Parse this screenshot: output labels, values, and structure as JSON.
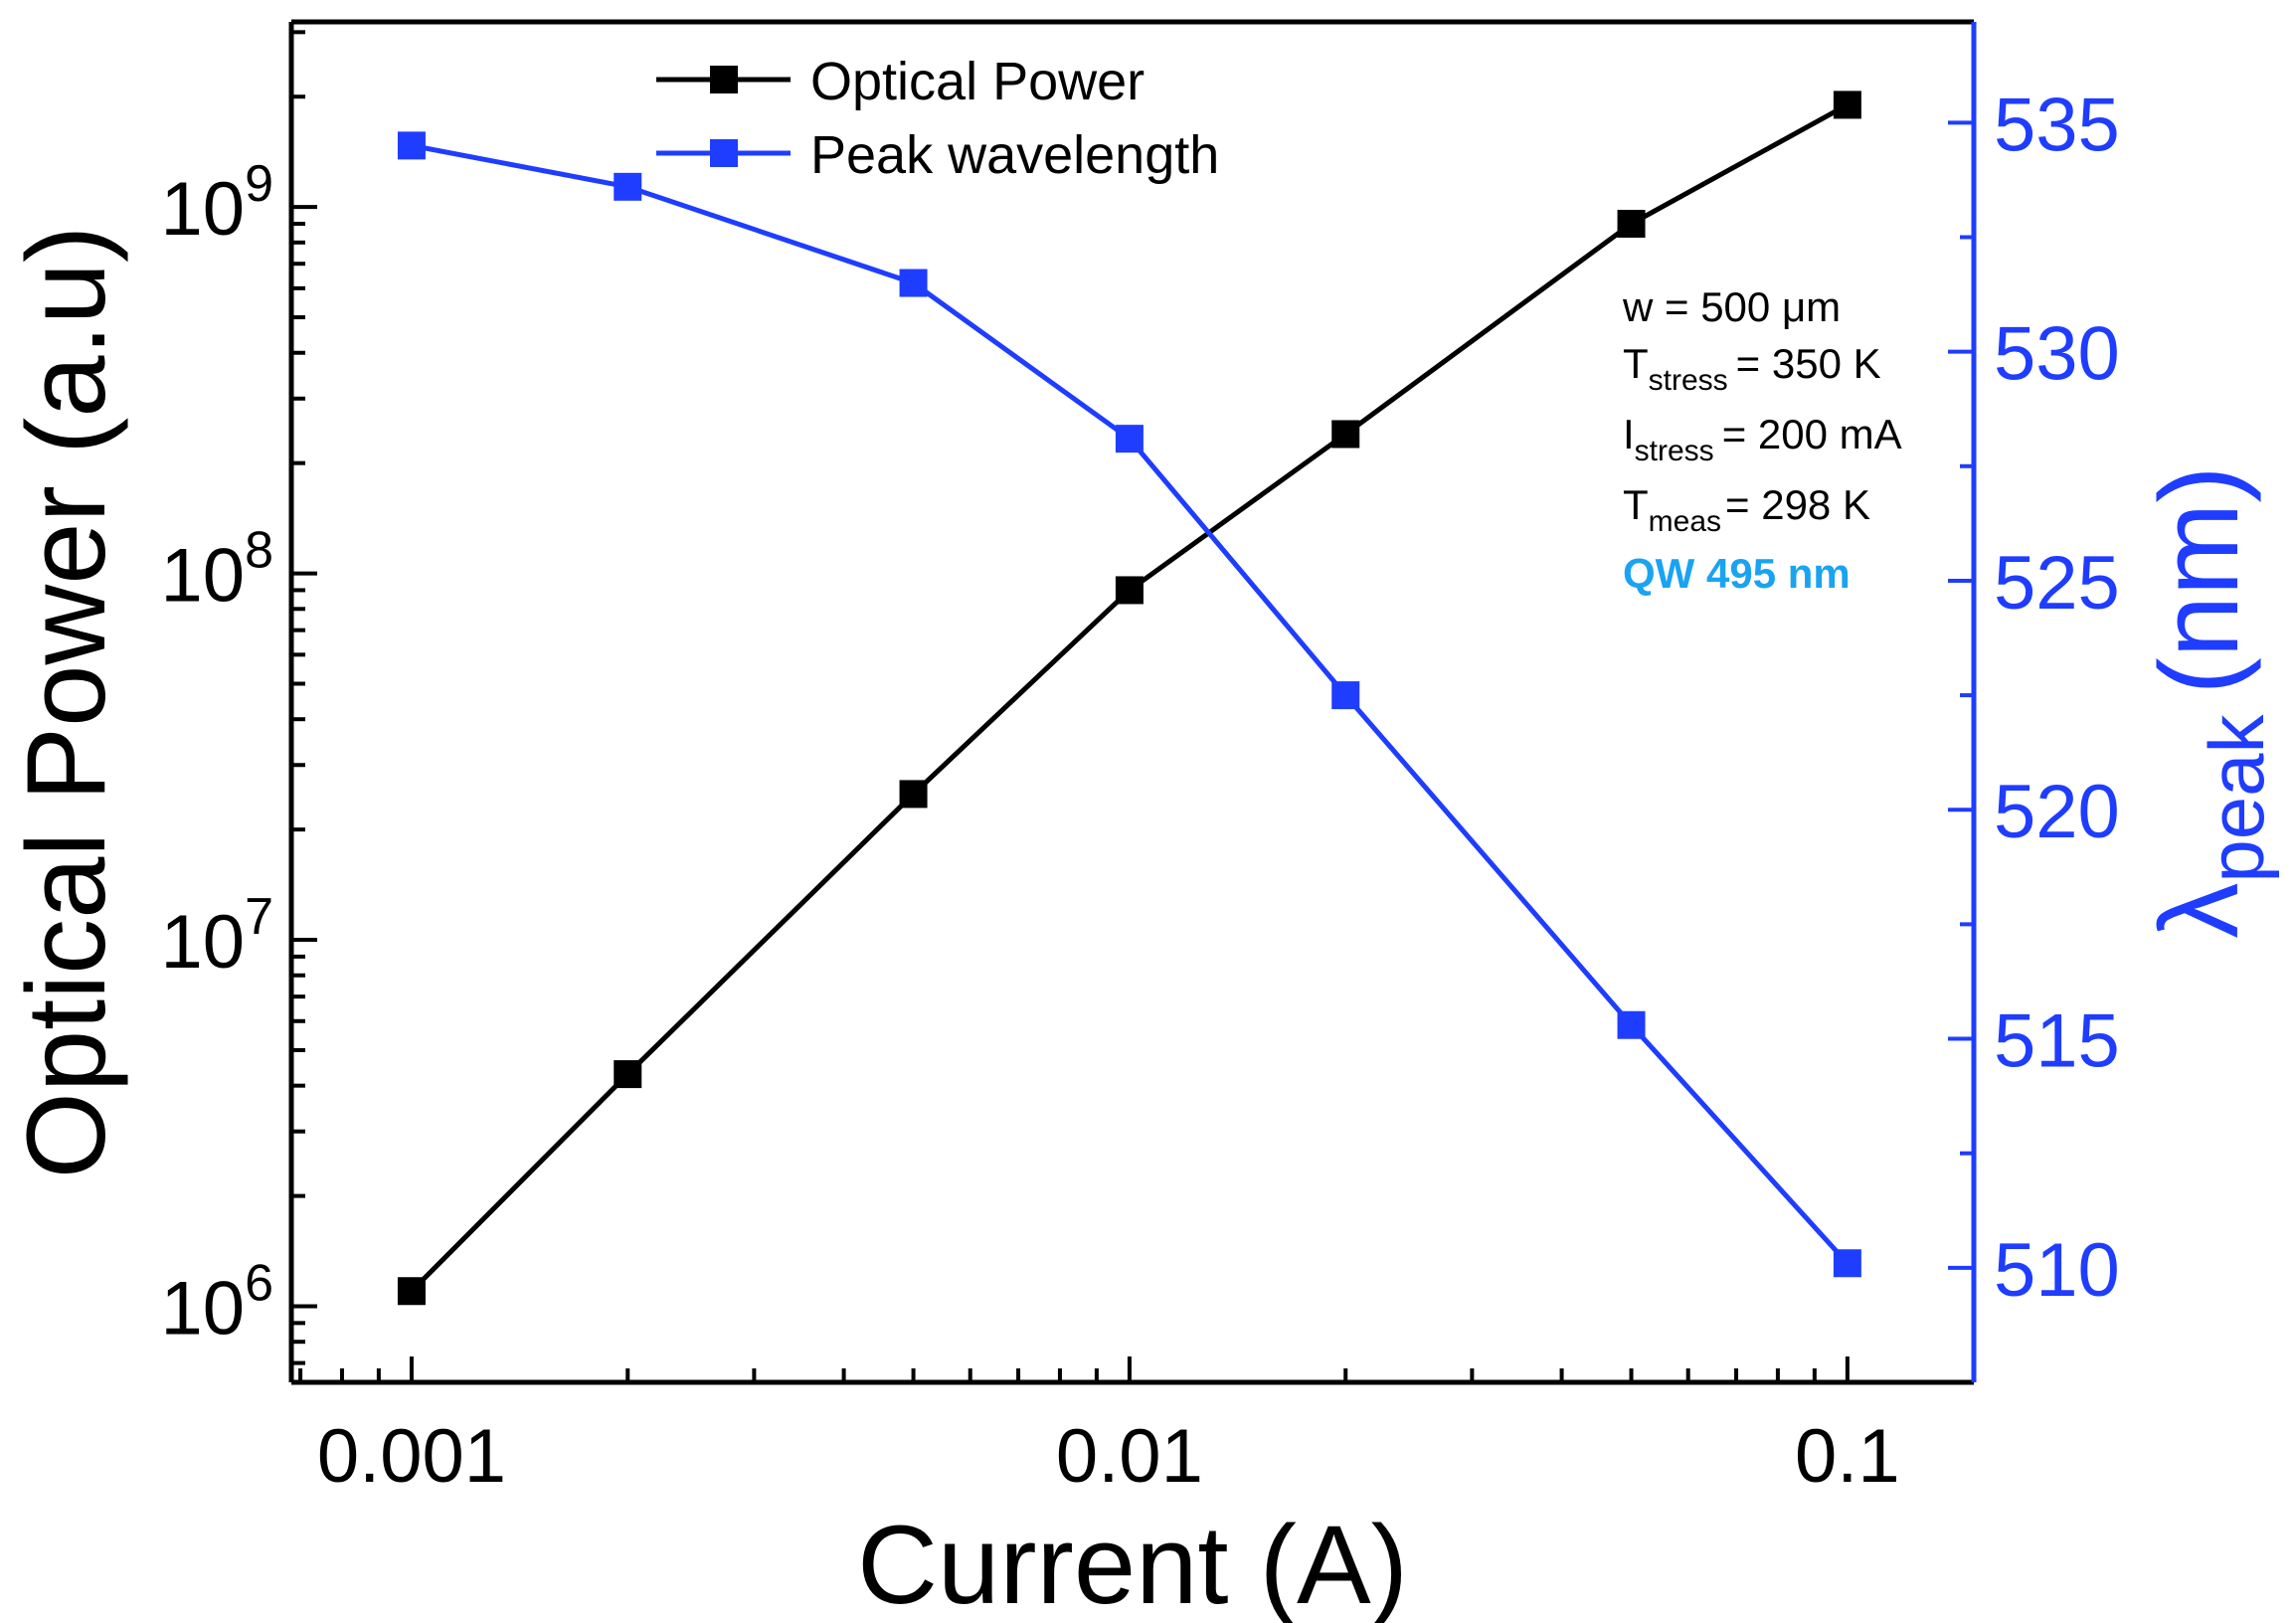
{
  "chart_data": {
    "type": "line",
    "xlabel": "Current (A)",
    "xscale": "log",
    "xlim": [
      0.00068,
      0.15
    ],
    "x": [
      0.001,
      0.002,
      0.005,
      0.01,
      0.02,
      0.05,
      0.1
    ],
    "x_ticks": [
      {
        "value": 0.001,
        "label": "0.001"
      },
      {
        "value": 0.01,
        "label": "0.01"
      },
      {
        "value": 0.1,
        "label": "0.1"
      }
    ],
    "y_left": {
      "label": "Optical Power (a.u)",
      "scale": "log",
      "lim": [
        620000,
        3200000000
      ],
      "ticks": [
        {
          "value": 1000000,
          "base": "10",
          "exp": "6"
        },
        {
          "value": 10000000,
          "base": "10",
          "exp": "7"
        },
        {
          "value": 100000000,
          "base": "10",
          "exp": "8"
        },
        {
          "value": 1000000000,
          "base": "10",
          "exp": "9"
        }
      ]
    },
    "y_right": {
      "label_symbol": "λ",
      "label_sub": "peak",
      "label_unit": "(nm)",
      "scale": "linear",
      "lim": [
        507.5,
        537.2
      ],
      "ticks": [
        510,
        515,
        520,
        525,
        530,
        535
      ],
      "color": "#1f3dff"
    },
    "series": [
      {
        "name": "Optical Power",
        "axis": "left",
        "color": "#000000",
        "marker": "square",
        "values": [
          1100000,
          4300000,
          25000000,
          90000000,
          240000000,
          900000000,
          1900000000
        ]
      },
      {
        "name": "Peak wavelength",
        "axis": "right",
        "color": "#1f3dff",
        "marker": "square",
        "values": [
          534.5,
          533.6,
          531.5,
          528.1,
          522.5,
          515.3,
          510.1
        ]
      }
    ],
    "legend": {
      "position": "top-center",
      "entries": [
        "Optical Power",
        "Peak wavelength"
      ]
    },
    "annotations": {
      "width": {
        "text": "w = 500 μm"
      },
      "t_stress": {
        "main": "T",
        "sub": "stress",
        "rest": "= 350 K"
      },
      "i_stress": {
        "main": "I",
        "sub": "stress",
        "rest": "= 200 mA"
      },
      "t_meas": {
        "main": "T",
        "sub": "meas",
        "rest": "= 298 K"
      },
      "qw": {
        "text": "QW 495 nm",
        "color": "#1aa3f0"
      }
    }
  }
}
